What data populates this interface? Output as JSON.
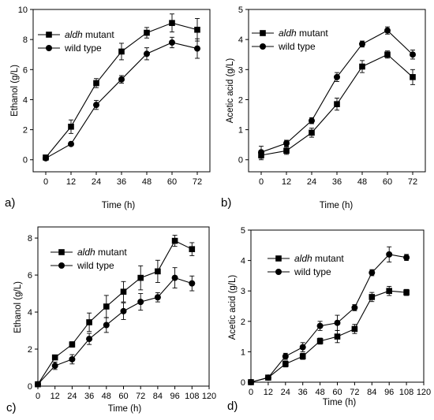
{
  "chart_data": [
    {
      "type": "line",
      "panel_label": "a)",
      "xlabel": "Time (h)",
      "ylabel": "Ethanol (g/L)",
      "xlim": [
        -6,
        78
      ],
      "ylim": [
        -0.8,
        10
      ],
      "xticks": [
        "0",
        "12",
        "24",
        "36",
        "48",
        "60",
        "72"
      ],
      "yticks": [
        "0",
        "2",
        "4",
        "6",
        "8",
        "10"
      ],
      "legend_position": "top-left",
      "x": [
        0,
        12,
        24,
        36,
        48,
        60,
        72
      ],
      "series": [
        {
          "name_italic": "aldh",
          "name_rest": " mutant",
          "marker": "square",
          "values": [
            0.15,
            2.2,
            5.1,
            7.2,
            8.45,
            9.1,
            8.65
          ],
          "errors": [
            0.15,
            0.45,
            0.3,
            0.55,
            0.35,
            0.6,
            0.75
          ]
        },
        {
          "name": "wild type",
          "marker": "circle",
          "values": [
            0.1,
            1.05,
            3.65,
            5.35,
            7.05,
            7.8,
            7.4
          ],
          "errors": [
            0.1,
            0.1,
            0.3,
            0.25,
            0.4,
            0.35,
            0.65
          ]
        }
      ]
    },
    {
      "type": "line",
      "panel_label": "b)",
      "xlabel": "Time (h)",
      "ylabel": "Acetic acid (g/L)",
      "xlim": [
        -6,
        78
      ],
      "ylim": [
        -0.4,
        5
      ],
      "xticks": [
        "0",
        "12",
        "24",
        "36",
        "48",
        "60",
        "72"
      ],
      "yticks": [
        "0",
        "1",
        "2",
        "3",
        "4",
        "5"
      ],
      "legend_position": "top-left",
      "x": [
        0,
        12,
        24,
        36,
        48,
        60,
        72
      ],
      "series": [
        {
          "name_italic": "aldh",
          "name_rest": " mutant",
          "marker": "square",
          "values": [
            0.15,
            0.3,
            0.9,
            1.85,
            3.1,
            3.5,
            2.75
          ],
          "errors": [
            0.15,
            0.12,
            0.15,
            0.2,
            0.2,
            0.12,
            0.25
          ]
        },
        {
          "name": "wild type",
          "marker": "circle",
          "values": [
            0.25,
            0.55,
            1.3,
            2.75,
            3.85,
            4.3,
            3.5
          ],
          "errors": [
            0.2,
            0.1,
            0.1,
            0.15,
            0.1,
            0.12,
            0.15
          ]
        }
      ]
    },
    {
      "type": "line",
      "panel_label": "c)",
      "xlabel": "Time (h)",
      "ylabel": "Ethanol (g/L)",
      "xlim": [
        0,
        120
      ],
      "ylim": [
        0,
        8.6
      ],
      "xticks": [
        "0",
        "12",
        "24",
        "36",
        "48",
        "60",
        "72",
        "84",
        "96",
        "108",
        "120"
      ],
      "yticks": [
        "0",
        "2",
        "4",
        "6",
        "8"
      ],
      "legend_position": "top-left",
      "x": [
        0,
        12,
        24,
        36,
        48,
        60,
        72,
        84,
        96,
        108
      ],
      "series": [
        {
          "name_italic": "aldh",
          "name_rest": " mutant",
          "marker": "square",
          "values": [
            0.1,
            1.55,
            2.25,
            3.45,
            4.3,
            5.1,
            5.85,
            6.2,
            7.85,
            7.4
          ],
          "errors": [
            0.1,
            0.1,
            0.15,
            0.5,
            0.6,
            0.55,
            0.65,
            0.6,
            0.3,
            0.35
          ]
        },
        {
          "name": "wild type",
          "marker": "circle",
          "values": [
            0.1,
            1.1,
            1.45,
            2.55,
            3.3,
            4.05,
            4.55,
            4.8,
            5.85,
            5.55
          ],
          "errors": [
            0.1,
            0.2,
            0.25,
            0.3,
            0.4,
            0.45,
            0.45,
            0.25,
            0.55,
            0.4
          ]
        }
      ]
    },
    {
      "type": "line",
      "panel_label": "d)",
      "xlabel": "Time (h)",
      "ylabel": "Acetic acid (g/L)",
      "xlim": [
        0,
        120
      ],
      "ylim": [
        0,
        5
      ],
      "xticks": [
        "0",
        "12",
        "24",
        "36",
        "48",
        "60",
        "72",
        "84",
        "96",
        "108",
        "120"
      ],
      "yticks": [
        "0",
        "1",
        "2",
        "3",
        "4",
        "5"
      ],
      "legend_position": "top-left",
      "x": [
        0,
        12,
        24,
        36,
        48,
        60,
        72,
        84,
        96,
        108
      ],
      "series": [
        {
          "name_italic": "aldh",
          "name_rest": " mutant",
          "marker": "square",
          "values": [
            0.0,
            0.15,
            0.6,
            0.85,
            1.35,
            1.5,
            1.75,
            2.8,
            3.0,
            2.95
          ],
          "errors": [
            0.05,
            0.05,
            0.1,
            0.1,
            0.1,
            0.2,
            0.15,
            0.15,
            0.15,
            0.1
          ]
        },
        {
          "name": "wild type",
          "marker": "circle",
          "values": [
            0.0,
            0.15,
            0.85,
            1.15,
            1.85,
            1.95,
            2.45,
            3.6,
            4.2,
            4.1
          ],
          "errors": [
            0.05,
            0.05,
            0.1,
            0.15,
            0.15,
            0.25,
            0.1,
            0.1,
            0.25,
            0.1
          ]
        }
      ]
    }
  ]
}
